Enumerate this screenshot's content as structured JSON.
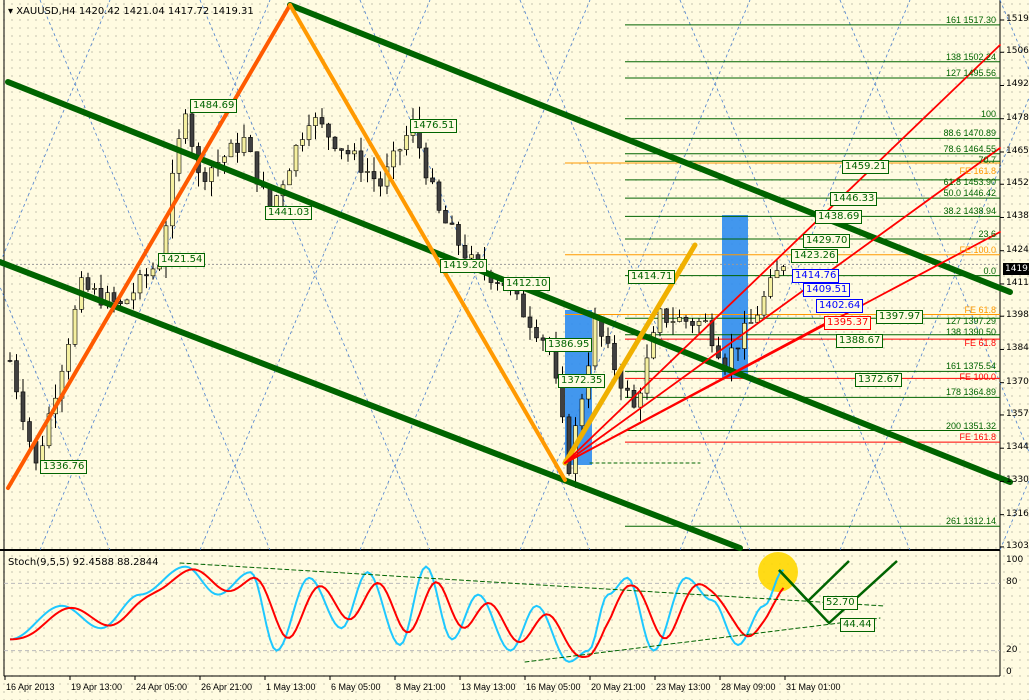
{
  "header": {
    "symbol_line": "XAUUSD,H4  1420.42 1421.04 1417.72 1419.31"
  },
  "stoch": {
    "label": "Stoch(9,5,5) 92.4588 88.2844",
    "levels": [
      "100",
      "80",
      "20",
      "0"
    ],
    "tags": [
      "52.70",
      "44.44"
    ]
  },
  "current_price": "1419.31",
  "colors": {
    "background": "#fffbe1",
    "channel": "#006400",
    "fan": "#ff0000",
    "bull": "#f5f0a0",
    "bear": "#404040",
    "stoch_main": "#1ec8ff",
    "stoch_signal": "#ff0000",
    "box": "#2d8cf0"
  },
  "chart_data": {
    "type": "candlestick",
    "price_axis": [
      "1519.30",
      "1506.10",
      "1492.50",
      "1478.90",
      "1465.30",
      "1452.10",
      "1438.50",
      "1424.90",
      "1411.30",
      "1398.10",
      "1384.50",
      "1370.90",
      "1357.70",
      "1344.10",
      "1330.50",
      "1316.90",
      "1303.70"
    ],
    "ylim": [
      1303.7,
      1519.3
    ],
    "time_axis": [
      "16 Apr 2013",
      "19 Apr 13:00",
      "24 Apr 05:00",
      "26 Apr 21:00",
      "1 May 13:00",
      "6 May 05:00",
      "8 May 21:00",
      "13 May 13:00",
      "16 May 05:00",
      "20 May 21:00",
      "23 May 13:00",
      "28 May 09:00",
      "31 May 01:00"
    ],
    "price_path_by_bar": [
      [
        0,
        1380
      ],
      [
        4,
        1336.76
      ],
      [
        11,
        1410
      ],
      [
        17,
        1402
      ],
      [
        23,
        1421
      ],
      [
        27,
        1484.69
      ],
      [
        29,
        1455
      ],
      [
        36,
        1470
      ],
      [
        40,
        1441.03
      ],
      [
        46,
        1480
      ],
      [
        54,
        1460
      ],
      [
        57,
        1452
      ],
      [
        62,
        1476.51
      ],
      [
        66,
        1440
      ],
      [
        71,
        1420
      ],
      [
        76,
        1412
      ],
      [
        79,
        1400
      ],
      [
        83,
        1386
      ],
      [
        86,
        1337
      ],
      [
        90,
        1395
      ],
      [
        96,
        1360
      ],
      [
        100,
        1398
      ],
      [
        107,
        1395
      ],
      [
        110,
        1380
      ],
      [
        114,
        1395
      ],
      [
        119,
        1420.42
      ]
    ],
    "stoch_k": [
      [
        0,
        30
      ],
      [
        8,
        60
      ],
      [
        14,
        40
      ],
      [
        20,
        70
      ],
      [
        27,
        95
      ],
      [
        32,
        70
      ],
      [
        37,
        90
      ],
      [
        41,
        20
      ],
      [
        46,
        85
      ],
      [
        51,
        40
      ],
      [
        55,
        90
      ],
      [
        60,
        25
      ],
      [
        64,
        95
      ],
      [
        68,
        30
      ],
      [
        72,
        70
      ],
      [
        77,
        20
      ],
      [
        81,
        60
      ],
      [
        86,
        10
      ],
      [
        89,
        20
      ],
      [
        92,
        70
      ],
      [
        95,
        85
      ],
      [
        99,
        20
      ],
      [
        104,
        85
      ],
      [
        108,
        65
      ],
      [
        112,
        25
      ],
      [
        116,
        60
      ],
      [
        119,
        92
      ]
    ],
    "price_tags": [
      {
        "text": "1484.69",
        "style": "green"
      },
      {
        "text": "1476.51",
        "style": "green"
      },
      {
        "text": "1441.03",
        "style": "green"
      },
      {
        "text": "1421.54",
        "style": "green"
      },
      {
        "text": "1419.20",
        "style": "green"
      },
      {
        "text": "1412.10",
        "style": "green"
      },
      {
        "text": "1386.95",
        "style": "green"
      },
      {
        "text": "1372.35",
        "style": "green"
      },
      {
        "text": "1414.71",
        "style": "green"
      },
      {
        "text": "1438.69",
        "style": "green"
      },
      {
        "text": "1429.70",
        "style": "green"
      },
      {
        "text": "1423.26",
        "style": "green"
      },
      {
        "text": "1446.33",
        "style": "green"
      },
      {
        "text": "1459.21",
        "style": "green"
      },
      {
        "text": "1397.97",
        "style": "green"
      },
      {
        "text": "1388.67",
        "style": "green"
      },
      {
        "text": "1372.67",
        "style": "green"
      },
      {
        "text": "1336.76",
        "style": "green"
      },
      {
        "text": "1414.76",
        "style": "blue"
      },
      {
        "text": "1409.51",
        "style": "blue"
      },
      {
        "text": "1402.64",
        "style": "blue"
      },
      {
        "text": "1395.37",
        "style": "red"
      }
    ],
    "fib_levels": [
      {
        "text": "161  1517.30",
        "price": 1517.3,
        "style": "green"
      },
      {
        "text": "138  1502.24",
        "price": 1502.24,
        "style": "green"
      },
      {
        "text": "127  1495.56",
        "price": 1495.56,
        "style": "green"
      },
      {
        "text": "100",
        "price": 1478.9,
        "style": "green"
      },
      {
        "text": "88.6  1470.89",
        "price": 1470.89,
        "style": "green"
      },
      {
        "text": "78.6  1464.55",
        "price": 1464.55,
        "style": "green"
      },
      {
        "text": "FE 161.8",
        "price": 1460.8,
        "style": "orange"
      },
      {
        "text": "70.7",
        "price": 1461.5,
        "style": "green"
      },
      {
        "text": "61.8  1453.90",
        "price": 1453.9,
        "style": "green"
      },
      {
        "text": "50.0  1446.42",
        "price": 1446.42,
        "style": "green"
      },
      {
        "text": "38.2  1438.94",
        "price": 1438.94,
        "style": "green"
      },
      {
        "text": "23.6",
        "price": 1429.7,
        "style": "green"
      },
      {
        "text": "FE 100.0",
        "price": 1423.26,
        "style": "orange"
      },
      {
        "text": "0.0",
        "price": 1414.7,
        "style": "green"
      },
      {
        "text": "FE 61.8",
        "price": 1398.8,
        "style": "orange"
      },
      {
        "text": "127  1397.29",
        "price": 1397.29,
        "style": "green"
      },
      {
        "text": "138  1390.50",
        "price": 1390.5,
        "style": "green"
      },
      {
        "text": "FE 61.8",
        "price": 1388.7,
        "style": "red"
      },
      {
        "text": "161  1375.54",
        "price": 1375.54,
        "style": "green"
      },
      {
        "text": "FE 100.0",
        "price": 1372.67,
        "style": "red"
      },
      {
        "text": "178  1364.89",
        "price": 1364.89,
        "style": "green"
      },
      {
        "text": "200  1351.32",
        "price": 1351.32,
        "style": "green"
      },
      {
        "text": "FE 161.8",
        "price": 1346.6,
        "style": "red"
      },
      {
        "text": "261  1312.14",
        "price": 1312.14,
        "style": "green"
      }
    ]
  }
}
